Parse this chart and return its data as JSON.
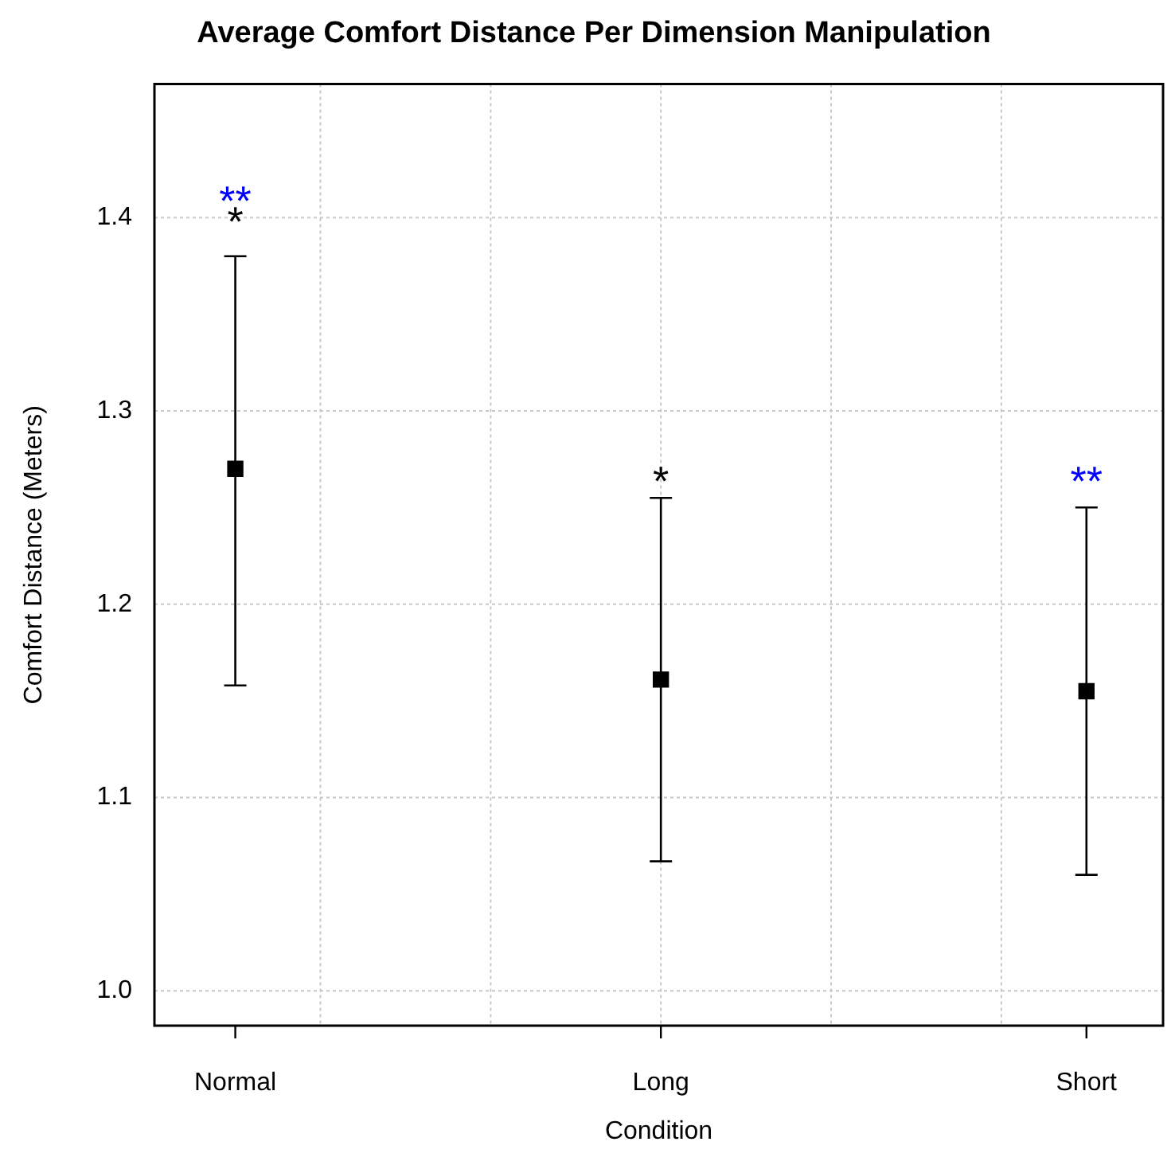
{
  "chart_data": {
    "type": "scatter",
    "title": "Average Comfort Distance Per Dimension Manipulation",
    "xlabel": "Condition",
    "ylabel": "Comfort Distance (Meters)",
    "categories": [
      "Normal",
      "Long",
      "Short"
    ],
    "series": [
      {
        "color": "#000000",
        "values": [
          1.27,
          1.161,
          1.155
        ],
        "errors": [
          [
            1.158,
            1.38
          ],
          [
            1.067,
            1.255
          ],
          [
            1.06,
            1.25
          ]
        ]
      }
    ],
    "ylim": [
      0.982,
      1.469
    ],
    "yticks": [
      {
        "value": 1.0,
        "label": "1.0"
      },
      1.1,
      1.2,
      1.3,
      1.4
    ],
    "grid": true,
    "legend": false,
    "marker": "square",
    "annotations": [
      "**",
      "*",
      "*",
      "**"
    ]
  }
}
